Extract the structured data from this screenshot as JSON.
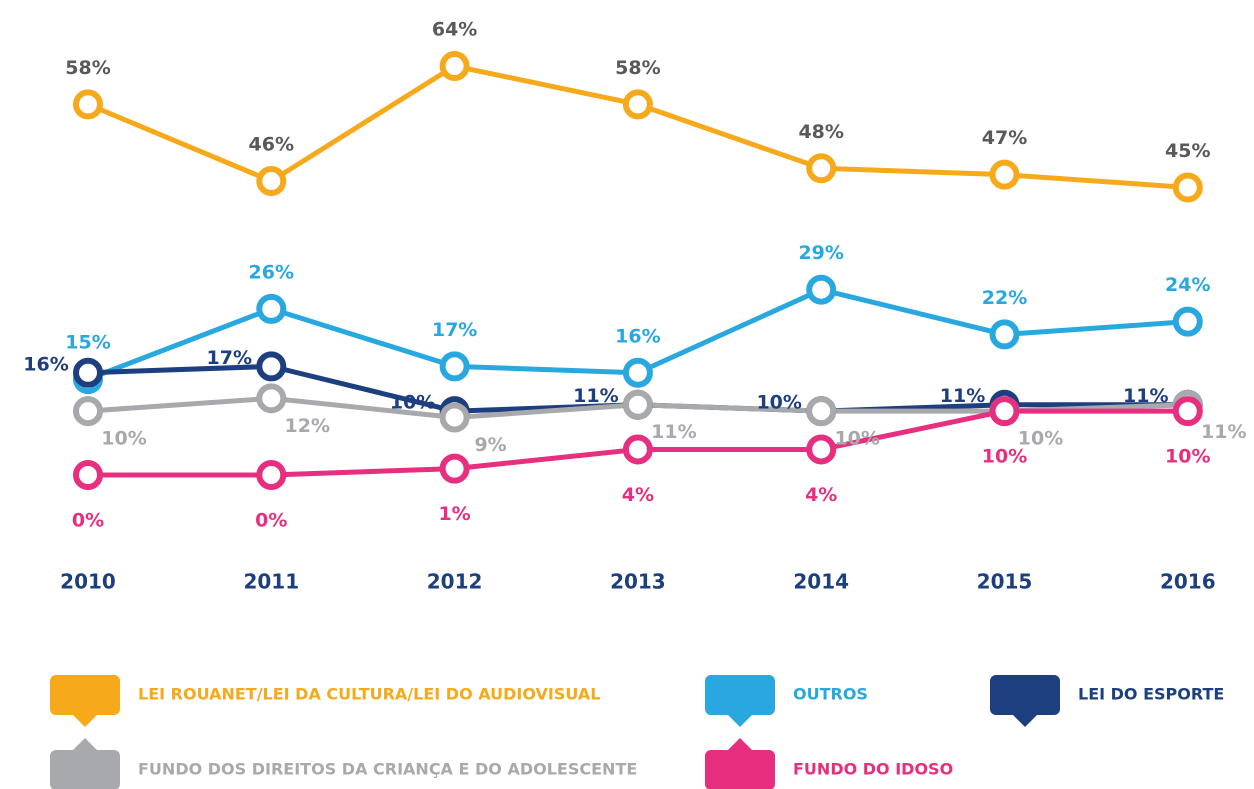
{
  "chart_data": {
    "type": "line",
    "categories": [
      "2010",
      "2011",
      "2012",
      "2013",
      "2014",
      "2015",
      "2016"
    ],
    "series": [
      {
        "name": "LEI ROUANET/LEI DA CULTURA/LEI DO AUDIOVISUAL",
        "color": "#f6a91b",
        "label_color": "#58595b",
        "values": [
          58,
          46,
          64,
          58,
          48,
          47,
          45
        ]
      },
      {
        "name": "OUTROS",
        "color": "#29a8e0",
        "label_color": "#29a8e0",
        "values": [
          15,
          26,
          17,
          16,
          29,
          22,
          24
        ]
      },
      {
        "name": "LEI DO ESPORTE",
        "color": "#1e3f7f",
        "label_color": "#1e3f7f",
        "values": [
          16,
          17,
          10,
          11,
          10,
          11,
          11
        ]
      },
      {
        "name": "FUNDO DOS DIREITOS DA CRIANÇA E DO ADOLESCENTE",
        "color": "#a7a9ac",
        "label_color": "#a7a9ac",
        "values": [
          10,
          12,
          9,
          11,
          10,
          10,
          11
        ]
      },
      {
        "name": "FUNDO DO IDOSO",
        "color": "#e62f7e",
        "label_color": "#e62f7e",
        "values": [
          0,
          0,
          1,
          4,
          4,
          10,
          10
        ]
      }
    ],
    "value_labels": [
      [
        "58%",
        "46%",
        "64%",
        "58%",
        "48%",
        "47%",
        "45%"
      ],
      [
        "15%",
        "26%",
        "17%",
        "16%",
        "29%",
        "22%",
        "24%"
      ],
      [
        "16%",
        "17%",
        "10%",
        "11%",
        "10%",
        "11%",
        "11%"
      ],
      [
        "10%",
        "12%",
        "9%",
        "11%",
        "10%",
        "10%",
        "11%"
      ],
      [
        "0%",
        "0%",
        "1%",
        "4%",
        "4%",
        "10%",
        "10%"
      ]
    ]
  }
}
